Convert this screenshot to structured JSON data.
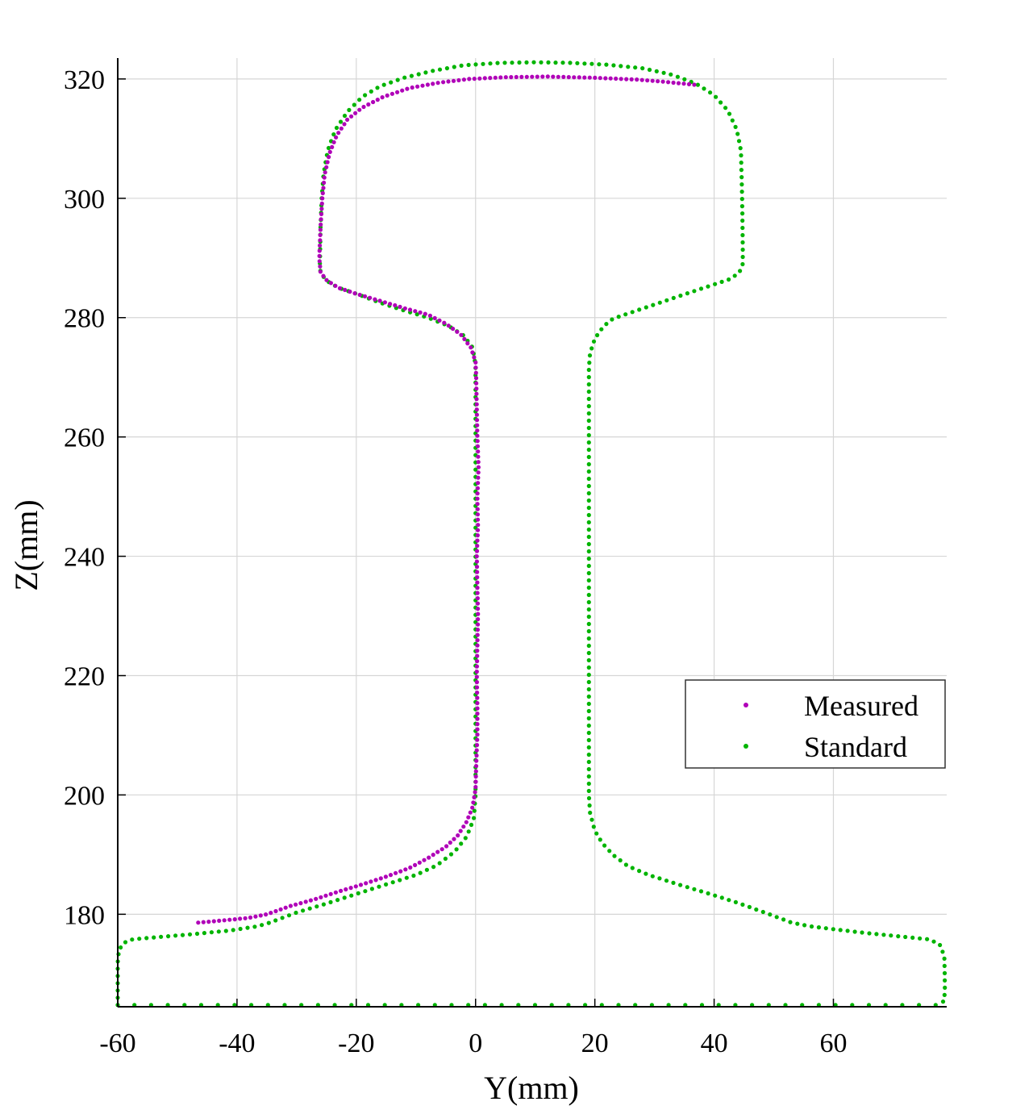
{
  "chart_data": {
    "type": "scatter",
    "title": "",
    "xlabel": "Y(mm)",
    "ylabel": "Z(mm)",
    "xlim": [
      -60,
      79
    ],
    "ylim": [
      164.5,
      323.5
    ],
    "xticks": [
      -60,
      -40,
      -20,
      0,
      20,
      40,
      60
    ],
    "yticks": [
      180,
      200,
      220,
      240,
      260,
      280,
      300,
      320
    ],
    "grid": true,
    "legend_position": "right-middle",
    "series": [
      {
        "name": "Measured",
        "color": "#b000b8",
        "outline": [
          [
            -46.5,
            178.6
          ],
          [
            -42,
            179
          ],
          [
            -38,
            179.4
          ],
          [
            -35,
            180
          ],
          [
            -31,
            181.4
          ],
          [
            -27,
            182.5
          ],
          [
            -23,
            183.8
          ],
          [
            -19,
            185
          ],
          [
            -15,
            186.3
          ],
          [
            -11,
            187.8
          ],
          [
            -8,
            189.4
          ],
          [
            -5,
            191.3
          ],
          [
            -3,
            193.2
          ],
          [
            -1.5,
            195.5
          ],
          [
            -0.5,
            198
          ],
          [
            0,
            201
          ],
          [
            0.1,
            205
          ],
          [
            0.3,
            210
          ],
          [
            0.3,
            215
          ],
          [
            0.2,
            220
          ],
          [
            0.3,
            225
          ],
          [
            0.4,
            230
          ],
          [
            0.3,
            235
          ],
          [
            0.2,
            240
          ],
          [
            0.4,
            245
          ],
          [
            0.3,
            250
          ],
          [
            0.5,
            255
          ],
          [
            0.3,
            260
          ],
          [
            0.2,
            265
          ],
          [
            0.1,
            270
          ],
          [
            0,
            272.6
          ],
          [
            -0.8,
            275
          ],
          [
            -2.5,
            277.2
          ],
          [
            -5,
            279
          ],
          [
            -8,
            280.5
          ],
          [
            -12,
            281.6
          ],
          [
            -16,
            282.8
          ],
          [
            -20,
            284
          ],
          [
            -23,
            285
          ],
          [
            -25,
            286.3
          ],
          [
            -26,
            287.6
          ],
          [
            -26.2,
            290
          ],
          [
            -26,
            295
          ],
          [
            -25.7,
            300
          ],
          [
            -25.3,
            304
          ],
          [
            -24.5,
            307.5
          ],
          [
            -23.3,
            310.5
          ],
          [
            -21.5,
            313.2
          ],
          [
            -19,
            315.2
          ],
          [
            -15.5,
            317
          ],
          [
            -11,
            318.5
          ],
          [
            -6,
            319.4
          ],
          [
            -1,
            320
          ],
          [
            5,
            320.3
          ],
          [
            12,
            320.4
          ],
          [
            20,
            320.2
          ],
          [
            27,
            319.9
          ],
          [
            32,
            319.5
          ],
          [
            37,
            319
          ]
        ]
      },
      {
        "name": "Standard",
        "color": "#00b400",
        "outline": [
          [
            -60,
            164.8
          ],
          [
            -60,
            172
          ],
          [
            -59.8,
            174
          ],
          [
            -59,
            175.2
          ],
          [
            -57.5,
            175.8
          ],
          [
            -53,
            176.2
          ],
          [
            -47,
            176.7
          ],
          [
            -41,
            177.3
          ],
          [
            -36.5,
            178
          ],
          [
            -34.5,
            178.6
          ],
          [
            -30,
            180.3
          ],
          [
            -25,
            181.8
          ],
          [
            -20,
            183.4
          ],
          [
            -15,
            185
          ],
          [
            -10,
            186.6
          ],
          [
            -6.5,
            188.2
          ],
          [
            -3.5,
            190.5
          ],
          [
            -1.5,
            193
          ],
          [
            -0.3,
            196
          ],
          [
            0,
            200
          ],
          [
            0,
            240
          ],
          [
            0,
            272
          ],
          [
            -0.5,
            275
          ],
          [
            -2,
            277
          ],
          [
            -4.5,
            278.6
          ],
          [
            -8,
            280
          ],
          [
            -12,
            281.2
          ],
          [
            -16,
            282.5
          ],
          [
            -20,
            284
          ],
          [
            -23,
            285
          ],
          [
            -25,
            286.2
          ],
          [
            -26,
            287.5
          ],
          [
            -26.1,
            289
          ],
          [
            -26,
            295
          ],
          [
            -25.8,
            300
          ],
          [
            -25.5,
            304
          ],
          [
            -24.8,
            308
          ],
          [
            -23.5,
            311.5
          ],
          [
            -21.5,
            314.5
          ],
          [
            -19,
            317
          ],
          [
            -16,
            318.8
          ],
          [
            -12,
            320.2
          ],
          [
            -7,
            321.4
          ],
          [
            -2,
            322.3
          ],
          [
            4,
            322.7
          ],
          [
            10,
            322.8
          ],
          [
            16,
            322.7
          ],
          [
            22,
            322.4
          ],
          [
            28,
            321.8
          ],
          [
            33,
            320.7
          ],
          [
            37,
            319.2
          ],
          [
            40,
            317.3
          ],
          [
            42.3,
            314.7
          ],
          [
            43.8,
            311.5
          ],
          [
            44.5,
            308
          ],
          [
            44.7,
            300
          ],
          [
            44.8,
            292
          ],
          [
            44.8,
            289
          ],
          [
            44.2,
            287.5
          ],
          [
            42.5,
            286.4
          ],
          [
            39.5,
            285.4
          ],
          [
            35,
            283.9
          ],
          [
            30,
            282.2
          ],
          [
            25,
            280.5
          ],
          [
            23,
            279.8
          ],
          [
            21.5,
            278.6
          ],
          [
            20,
            276.5
          ],
          [
            19.2,
            274
          ],
          [
            19,
            271.5
          ],
          [
            19,
            240
          ],
          [
            19,
            200
          ],
          [
            19.2,
            197
          ],
          [
            20,
            194
          ],
          [
            21.2,
            192
          ],
          [
            23,
            190
          ],
          [
            25.5,
            188.1
          ],
          [
            29,
            186.6
          ],
          [
            34,
            185
          ],
          [
            39,
            183.5
          ],
          [
            44,
            181.9
          ],
          [
            49,
            180.1
          ],
          [
            53,
            178.6
          ],
          [
            56,
            178
          ],
          [
            60,
            177.5
          ],
          [
            66,
            176.8
          ],
          [
            72,
            176.2
          ],
          [
            76,
            175.8
          ],
          [
            77.8,
            175
          ],
          [
            78.6,
            173
          ],
          [
            78.7,
            168
          ],
          [
            78.6,
            165.5
          ],
          [
            77.5,
            164.8
          ]
        ],
        "segments": [
          [
            [
              -60,
              164.8
            ],
            [
              77.5,
              164.8
            ]
          ]
        ]
      }
    ]
  }
}
